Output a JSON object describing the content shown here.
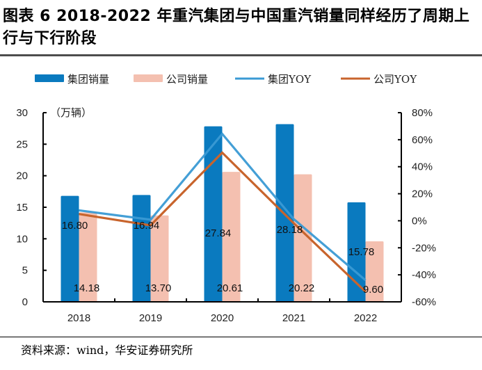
{
  "title": "图表 6 2018-2022 年重汽集团与中国重汽销量同样经历了周期上行与下行阶段",
  "source": "资料来源：wind，华安证券研究所",
  "chart_data": {
    "type": "bar",
    "title": "2018-2022 年重汽集团与中国重汽销量同样经历了周期上行与下行阶段",
    "categories": [
      "2018",
      "2019",
      "2020",
      "2021",
      "2022"
    ],
    "y_unit_label": "（万辆）",
    "ylim": [
      0,
      30
    ],
    "yticks": [
      0,
      5,
      10,
      15,
      20,
      25,
      30
    ],
    "y2lim": [
      -60,
      80
    ],
    "y2ticks": [
      "-60%",
      "-40%",
      "-20%",
      "0%",
      "20%",
      "40%",
      "60%",
      "80%"
    ],
    "y2tick_values": [
      -60,
      -40,
      -20,
      0,
      20,
      40,
      60,
      80
    ],
    "legend_position": "top",
    "grid": false,
    "series": [
      {
        "name": "集团销量",
        "type": "bar",
        "axis": "left",
        "color": "#0a7abf",
        "values": [
          16.8,
          16.94,
          27.84,
          28.18,
          15.78
        ],
        "labels": [
          "16.80",
          "16.94",
          "27.84",
          "28.18",
          "15.78"
        ]
      },
      {
        "name": "公司销量",
        "type": "bar",
        "axis": "left",
        "color": "#f4c0b0",
        "values": [
          14.18,
          13.7,
          20.61,
          20.22,
          9.6
        ],
        "labels": [
          "14.18",
          "13.70",
          "20.61",
          "20.22",
          "9.60"
        ]
      },
      {
        "name": "集团YOY",
        "type": "line",
        "axis": "right",
        "color": "#3a9ad4",
        "values": [
          7.7,
          0.8,
          64.3,
          1.2,
          -44.0
        ]
      },
      {
        "name": "公司YOY",
        "type": "line",
        "axis": "right",
        "color": "#c8642c",
        "values": [
          5.0,
          -3.4,
          50.4,
          -1.9,
          -52.5
        ]
      }
    ]
  }
}
